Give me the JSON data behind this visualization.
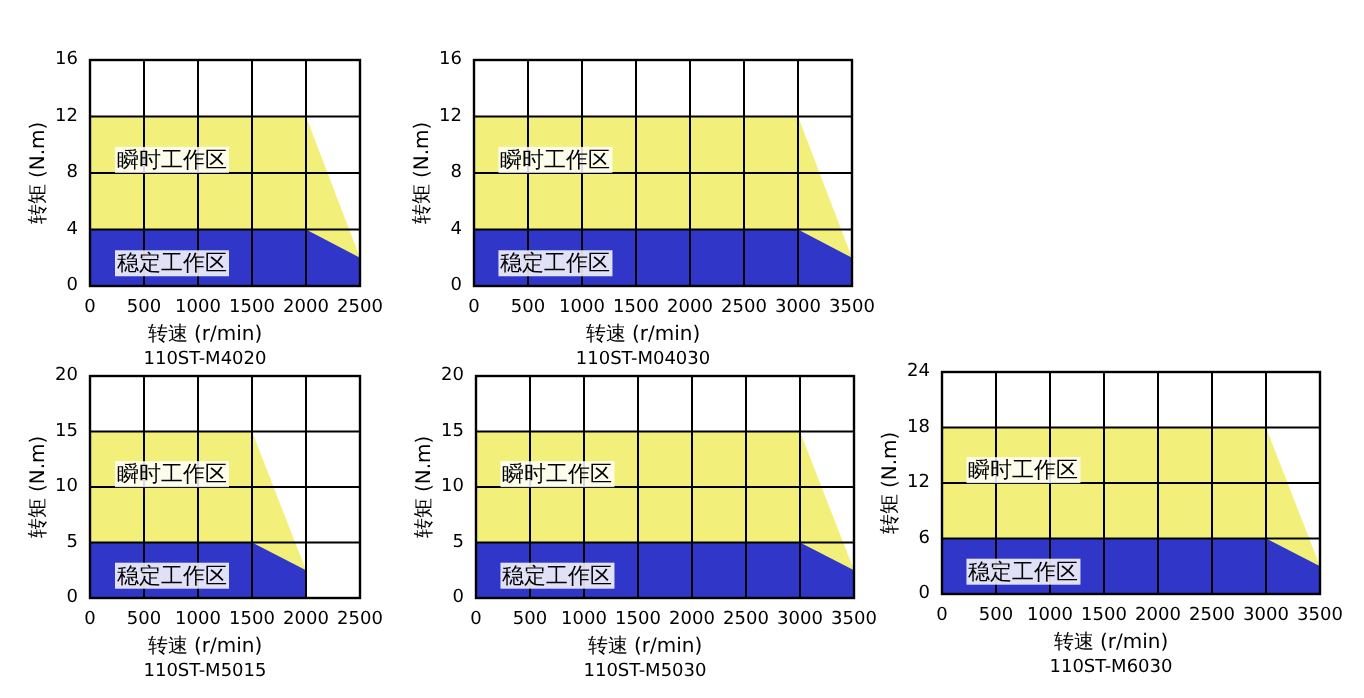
{
  "chart_data": [
    {
      "type": "area",
      "title": "110ST-M4020",
      "xlabel": "转速 (r/min)",
      "ylabel": "转矩 (N.m)",
      "xlim": [
        0,
        2500
      ],
      "xticks": [
        0,
        500,
        1000,
        1500,
        2000,
        2500
      ],
      "ylim": [
        0,
        16
      ],
      "yticks": [
        0,
        4,
        8,
        12,
        16
      ],
      "grid": true,
      "legend": false,
      "series": [
        {
          "name": "瞬时工作区",
          "color": "#f2f07a",
          "x": [
            0,
            2000,
            2500
          ],
          "values": [
            12,
            12,
            2
          ]
        },
        {
          "name": "稳定工作区",
          "color": "#2f36c8",
          "x": [
            0,
            2000,
            2500
          ],
          "values": [
            4,
            4,
            2
          ]
        }
      ]
    },
    {
      "type": "area",
      "title": "110ST-M04030",
      "xlabel": "转速 (r/min)",
      "ylabel": "转矩 (N.m)",
      "xlim": [
        0,
        3500
      ],
      "xticks": [
        0,
        500,
        1000,
        1500,
        2000,
        2500,
        3000,
        3500
      ],
      "ylim": [
        0,
        16
      ],
      "yticks": [
        0,
        4,
        8,
        12,
        16
      ],
      "grid": true,
      "legend": false,
      "series": [
        {
          "name": "瞬时工作区",
          "color": "#f2f07a",
          "x": [
            0,
            3000,
            3500
          ],
          "values": [
            12,
            12,
            2
          ]
        },
        {
          "name": "稳定工作区",
          "color": "#2f36c8",
          "x": [
            0,
            3000,
            3500
          ],
          "values": [
            4,
            4,
            2
          ]
        }
      ]
    },
    {
      "type": "area",
      "title": "110ST-M5015",
      "xlabel": "转速 (r/min)",
      "ylabel": "转矩 (N.m)",
      "xlim": [
        0,
        2500
      ],
      "xticks": [
        0,
        500,
        1000,
        1500,
        2000,
        2500
      ],
      "ylim": [
        0,
        20
      ],
      "yticks": [
        0,
        5,
        10,
        15,
        20
      ],
      "grid": true,
      "legend": false,
      "series": [
        {
          "name": "瞬时工作区",
          "color": "#f2f07a",
          "x": [
            0,
            1500,
            2000
          ],
          "values": [
            15,
            15,
            2.5
          ]
        },
        {
          "name": "稳定工作区",
          "color": "#2f36c8",
          "x": [
            0,
            1500,
            2000
          ],
          "values": [
            5,
            5,
            2.5
          ]
        }
      ]
    },
    {
      "type": "area",
      "title": "110ST-M5030",
      "xlabel": "转速 (r/min)",
      "ylabel": "转矩 (N.m)",
      "xlim": [
        0,
        3500
      ],
      "xticks": [
        0,
        500,
        1000,
        1500,
        2000,
        2500,
        3000,
        3500
      ],
      "ylim": [
        0,
        20
      ],
      "yticks": [
        0,
        5,
        10,
        15,
        20
      ],
      "grid": true,
      "legend": false,
      "series": [
        {
          "name": "瞬时工作区",
          "color": "#f2f07a",
          "x": [
            0,
            3000,
            3500
          ],
          "values": [
            15,
            15,
            2.5
          ]
        },
        {
          "name": "稳定工作区",
          "color": "#2f36c8",
          "x": [
            0,
            3000,
            3500
          ],
          "values": [
            5,
            5,
            2.5
          ]
        }
      ]
    },
    {
      "type": "area",
      "title": "110ST-M6030",
      "xlabel": "转速 (r/min)",
      "ylabel": "转矩 (N.m)",
      "xlim": [
        0,
        3500
      ],
      "xticks": [
        0,
        500,
        1000,
        1500,
        2000,
        2500,
        3000,
        3500
      ],
      "ylim": [
        0,
        24
      ],
      "yticks": [
        0,
        6,
        12,
        18,
        24
      ],
      "grid": true,
      "legend": false,
      "series": [
        {
          "name": "瞬时工作区",
          "color": "#f2f07a",
          "x": [
            0,
            3000,
            3500
          ],
          "values": [
            18,
            18,
            3
          ]
        },
        {
          "name": "稳定工作区",
          "color": "#2f36c8",
          "x": [
            0,
            3000,
            3500
          ],
          "values": [
            6,
            6,
            3
          ]
        }
      ]
    }
  ]
}
